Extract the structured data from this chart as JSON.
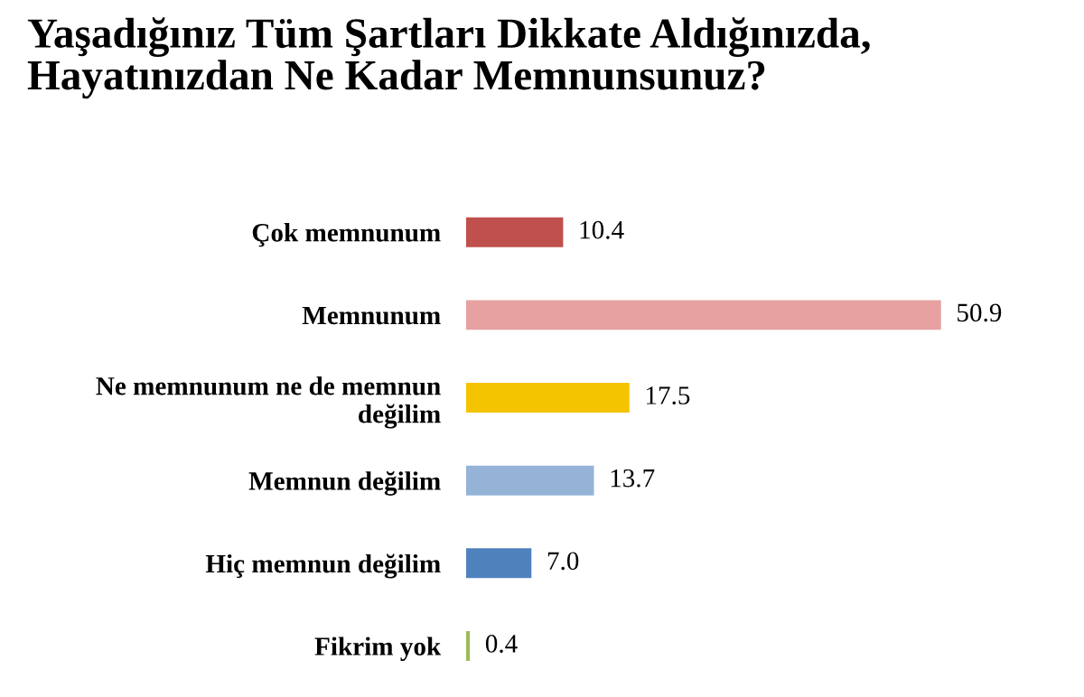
{
  "chart_data": {
    "type": "bar",
    "orientation": "horizontal",
    "title": "Yaşadığınız Tüm Şartları Dikkate Aldığınızda,\nHayatınızdan Ne Kadar Memnunsunuz?",
    "categories": [
      "Çok memnunum",
      "Memnunum",
      "Ne memnunum ne de memnun\ndeğilim",
      "Memnun değilim",
      "Hiç memnun değilim",
      "Fikrim yok"
    ],
    "values": [
      10.4,
      50.9,
      17.5,
      13.7,
      7.0,
      0.4
    ],
    "colors": [
      "#c0504d",
      "#e6a1a0",
      "#f5c400",
      "#95b3d7",
      "#4f81bd",
      "#9bbb59"
    ],
    "value_labels": [
      "10.4",
      "50.9",
      "17.5",
      "13.7",
      "7.0",
      "0.4"
    ],
    "tick_labels": "y",
    "grid": false,
    "legend": false
  }
}
